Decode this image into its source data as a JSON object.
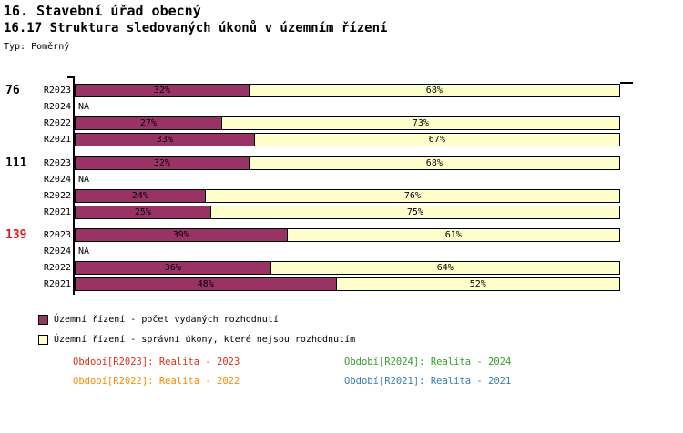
{
  "header": {
    "title": "16. Stavební úřad obecný",
    "subtitle": "16.17 Struktura sledovaných úkonů v územním řízení",
    "type_label": "Typ: Poměrný"
  },
  "chart_data": {
    "type": "bar",
    "orientation": "horizontal",
    "stacked": true,
    "value_unit": "%",
    "xlim": [
      0,
      100
    ],
    "grid": false,
    "na_text": "NA",
    "series_names": [
      "Územní řízení - počet vydaných rozhodnutí",
      "Územní řízení - správní úkony, které nejsou rozhodnutím"
    ],
    "segment_colors": [
      "#993366",
      "#ffffcc"
    ],
    "groups": [
      {
        "total": "76",
        "total_color": "#000000",
        "rows": [
          {
            "label": "R2023",
            "values": [
              32,
              68
            ]
          },
          {
            "label": "R2024",
            "na": true
          },
          {
            "label": "R2022",
            "values": [
              27,
              73
            ]
          },
          {
            "label": "R2021",
            "values": [
              33,
              67
            ]
          }
        ]
      },
      {
        "total": "111",
        "total_color": "#000000",
        "rows": [
          {
            "label": "R2023",
            "values": [
              32,
              68
            ]
          },
          {
            "label": "R2024",
            "na": true
          },
          {
            "label": "R2022",
            "values": [
              24,
              76
            ]
          },
          {
            "label": "R2021",
            "values": [
              25,
              75
            ]
          }
        ]
      },
      {
        "total": "139",
        "total_color": "#e31a1c",
        "rows": [
          {
            "label": "R2023",
            "values": [
              39,
              61
            ]
          },
          {
            "label": "R2024",
            "na": true
          },
          {
            "label": "R2022",
            "values": [
              36,
              64
            ]
          },
          {
            "label": "R2021",
            "values": [
              48,
              52
            ]
          }
        ]
      }
    ]
  },
  "legend": {
    "items": [
      {
        "label": "Územní řízení - počet vydaných rozhodnutí",
        "color": "#993366"
      },
      {
        "label": "Územní řízení - správní úkony, které nejsou rozhodnutím",
        "color": "#ffffcc"
      }
    ]
  },
  "footer": {
    "items": [
      {
        "text": "Období[R2023]: Realita - 2023",
        "color": "#e0301e"
      },
      {
        "text": "Období[R2024]: Realita - 2024",
        "color": "#33a02c"
      },
      {
        "text": "Období[R2022]: Realita - 2022",
        "color": "#ff8c00"
      },
      {
        "text": "Období[R2021]: Realita - 2021",
        "color": "#377eb8"
      }
    ]
  }
}
